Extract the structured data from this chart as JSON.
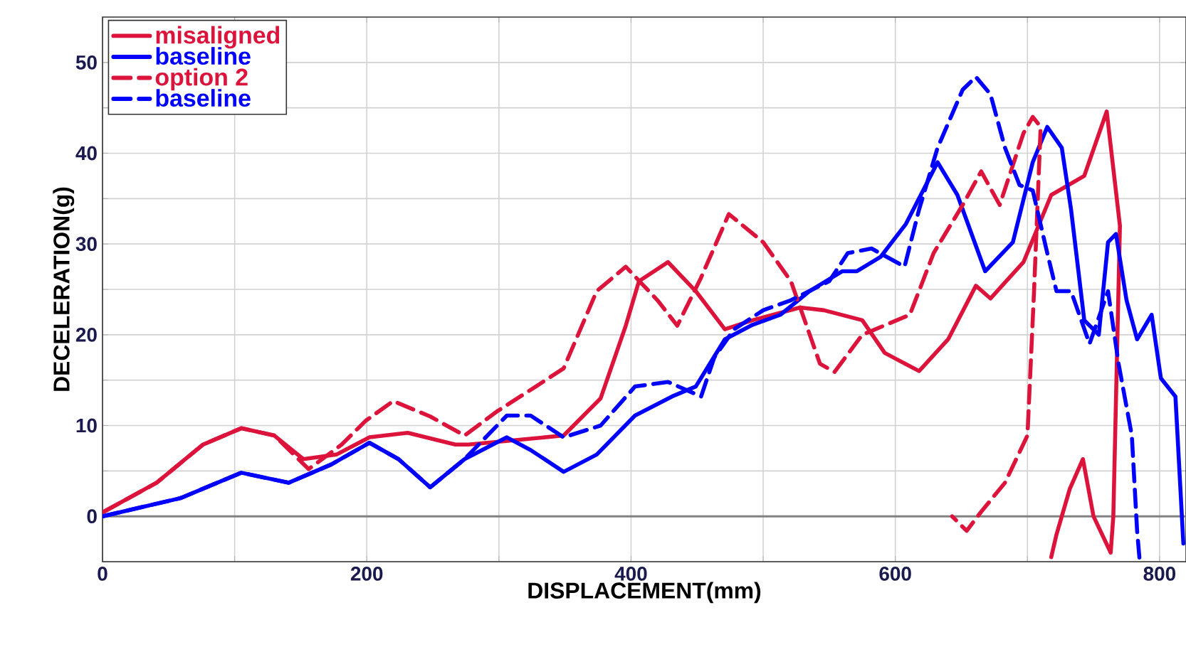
{
  "chart_data": {
    "type": "line",
    "xlabel": "DISPLACEMENT(mm)",
    "ylabel": "DECELERATION(g)",
    "xlim": [
      0,
      820
    ],
    "ylim": [
      -5,
      55
    ],
    "xticks": [
      0,
      {
        "value": 100,
        "label": null
      },
      200,
      {
        "value": 300,
        "label": null
      },
      400,
      {
        "value": 500,
        "label": null
      },
      600,
      {
        "value": 700,
        "label": null
      },
      800
    ],
    "yticks": [
      {
        "value": -5,
        "label": null
      },
      0,
      {
        "value": 5,
        "label": null
      },
      10,
      {
        "value": 15,
        "label": null
      },
      20,
      {
        "value": 25,
        "label": null
      },
      30,
      {
        "value": 35,
        "label": null
      },
      40,
      {
        "value": 45,
        "label": null
      },
      50
    ],
    "grid": true,
    "legend": "top left",
    "marker": "none",
    "ref_lines": [
      {
        "axis": "y",
        "value": 0,
        "color": "#808080"
      }
    ],
    "series": [
      {
        "name": "misaligned",
        "color": "#dc143c",
        "line_style": "solid",
        "x": [
          1,
          41,
          76,
          105,
          130,
          152,
          177,
          202,
          231,
          267,
          277,
          349,
          377,
          396,
          406,
          428,
          449,
          471,
          492,
          528,
          546,
          575,
          592,
          618,
          640,
          661,
          672,
          697,
          718,
          743,
          760,
          770,
          765,
          763,
          750,
          742,
          732,
          722,
          718
        ],
        "values": [
          0.5,
          3.7,
          7.9,
          9.7,
          8.9,
          6.3,
          6.8,
          8.7,
          9.2,
          7.9,
          7.9,
          8.9,
          13,
          21,
          25.9,
          28,
          24.8,
          20.6,
          21.6,
          23,
          22.7,
          21.6,
          18,
          16,
          19.5,
          25.4,
          24,
          28,
          35.4,
          37.5,
          44.6,
          32,
          0,
          -4,
          0,
          6.3,
          3,
          -2,
          -4.5
        ]
      },
      {
        "name": "baseline",
        "color": "#0000ff",
        "line_style": "solid",
        "x": [
          0,
          59,
          105,
          141,
          173,
          202,
          224,
          248,
          274,
          306,
          324,
          349,
          374,
          403,
          431,
          449,
          471,
          492,
          513,
          535,
          560,
          571,
          589,
          608,
          632,
          647,
          668,
          689,
          704,
          715,
          726,
          733,
          743,
          754,
          761,
          767,
          775,
          783,
          794,
          801,
          812,
          818
        ],
        "values": [
          0,
          2,
          4.8,
          3.7,
          5.7,
          8.1,
          6.3,
          3.2,
          6.3,
          8.7,
          7.3,
          4.9,
          6.8,
          11.1,
          13.2,
          14.3,
          19.5,
          21.1,
          22.2,
          24.8,
          27,
          27,
          28.6,
          32.2,
          39,
          35.4,
          27,
          30.2,
          39,
          42.9,
          40.6,
          33.8,
          21.6,
          20,
          30.2,
          31.1,
          23.8,
          19.5,
          22.2,
          15.2,
          13.2,
          -3
        ]
      },
      {
        "name": "option 2",
        "color": "#dc143c",
        "line_style": "dashed",
        "x": [
          1,
          41,
          76,
          105,
          130,
          156,
          181,
          199,
          220,
          248,
          274,
          299,
          328,
          349,
          374,
          396,
          420,
          435,
          453,
          474,
          500,
          521,
          543,
          554,
          575,
          611,
          629,
          651,
          665,
          679,
          697,
          704,
          710,
          705,
          700,
          683,
          665,
          654,
          643
        ],
        "values": [
          0.5,
          3.7,
          7.9,
          9.7,
          8.9,
          5.2,
          7.9,
          10.5,
          12.7,
          11,
          8.9,
          11.6,
          14.3,
          16.3,
          24.8,
          27.5,
          23.8,
          21,
          26.3,
          33.3,
          30.2,
          25.9,
          16.8,
          15.9,
          20,
          22.2,
          29,
          34.3,
          38,
          34.3,
          42.2,
          44,
          42.9,
          24.8,
          8.9,
          3.7,
          0.5,
          -1.6,
          0
        ]
      },
      {
        "name": "baseline",
        "color": "#0000ff",
        "line_style": "dashed",
        "x": [
          0,
          59,
          105,
          141,
          173,
          202,
          224,
          248,
          274,
          306,
          324,
          349,
          377,
          403,
          428,
          453,
          463,
          478,
          500,
          521,
          550,
          564,
          582,
          607,
          618,
          632,
          651,
          661,
          672,
          683,
          694,
          704,
          715,
          722,
          733,
          747,
          761,
          769,
          779,
          783,
          785
        ],
        "values": [
          0,
          2,
          4.8,
          3.7,
          5.7,
          8.1,
          6.3,
          3.2,
          6.3,
          11.1,
          11.1,
          8.7,
          10,
          14.3,
          14.8,
          13.2,
          17.5,
          20.6,
          22.7,
          23.8,
          25.9,
          29,
          29.5,
          27.5,
          33.8,
          40.6,
          47,
          48.4,
          46.5,
          40.6,
          36.5,
          35.9,
          29,
          24.8,
          24.8,
          19,
          24.8,
          16.8,
          8.9,
          -1.6,
          -5
        ]
      }
    ]
  }
}
